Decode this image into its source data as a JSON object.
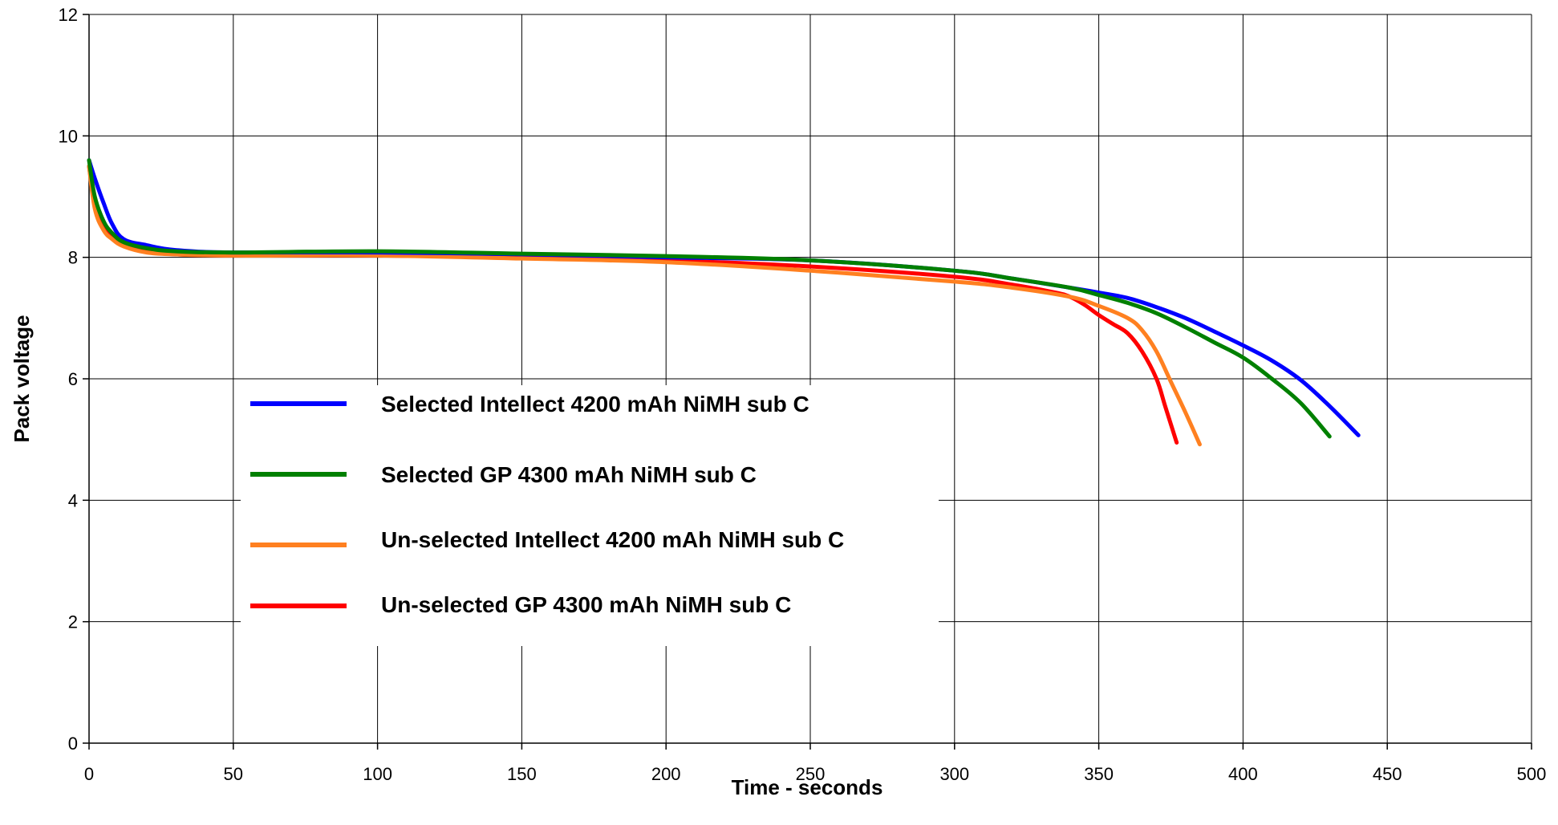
{
  "chart_data": {
    "type": "line",
    "xlabel": "Time - seconds",
    "ylabel": "Pack voltage",
    "xlim": [
      0,
      500
    ],
    "ylim": [
      0,
      12
    ],
    "xticks": [
      0,
      50,
      100,
      150,
      200,
      250,
      300,
      350,
      400,
      450,
      500
    ],
    "yticks": [
      0,
      2,
      4,
      6,
      8,
      10,
      12
    ],
    "grid": true,
    "legend_position": "center-left",
    "series": [
      {
        "name": "Selected Intellect 4200 mAh NiMH sub C",
        "color": "#0000ff",
        "x": [
          0,
          2,
          5,
          8,
          12,
          20,
          30,
          50,
          100,
          150,
          200,
          250,
          300,
          320,
          340,
          350,
          360,
          370,
          380,
          390,
          400,
          410,
          420,
          430,
          440
        ],
        "y": [
          9.6,
          9.3,
          8.9,
          8.55,
          8.3,
          8.2,
          8.12,
          8.08,
          8.08,
          8.05,
          8.0,
          7.95,
          7.78,
          7.65,
          7.5,
          7.42,
          7.33,
          7.18,
          7.0,
          6.78,
          6.55,
          6.3,
          5.98,
          5.55,
          5.07
        ]
      },
      {
        "name": "Selected GP 4300 mAh NiMH sub C",
        "color": "#008000",
        "x": [
          0,
          2,
          5,
          8,
          12,
          20,
          30,
          50,
          100,
          150,
          200,
          250,
          300,
          320,
          340,
          350,
          360,
          370,
          380,
          390,
          400,
          410,
          420,
          430
        ],
        "y": [
          9.6,
          9.0,
          8.6,
          8.4,
          8.25,
          8.15,
          8.1,
          8.08,
          8.1,
          8.06,
          8.02,
          7.95,
          7.78,
          7.65,
          7.5,
          7.38,
          7.25,
          7.08,
          6.85,
          6.6,
          6.35,
          6.0,
          5.6,
          5.05
        ]
      },
      {
        "name": "Un-selected Intellect 4200 mAh NiMH sub C",
        "color": "#ff8020",
        "x": [
          0,
          2,
          5,
          8,
          12,
          20,
          30,
          50,
          100,
          150,
          200,
          250,
          300,
          320,
          340,
          350,
          360,
          365,
          370,
          375,
          380,
          385
        ],
        "y": [
          9.5,
          8.8,
          8.45,
          8.3,
          8.18,
          8.08,
          8.05,
          8.03,
          8.03,
          7.98,
          7.92,
          7.78,
          7.6,
          7.5,
          7.35,
          7.2,
          7.0,
          6.8,
          6.45,
          5.95,
          5.45,
          4.92
        ]
      },
      {
        "name": "Un-selected GP 4300 mAh NiMH sub C",
        "color": "#ff0000",
        "x": [
          0,
          2,
          5,
          8,
          12,
          20,
          30,
          50,
          100,
          150,
          200,
          250,
          300,
          320,
          335,
          340,
          345,
          350,
          355,
          360,
          365,
          370,
          373,
          377
        ],
        "y": [
          9.5,
          8.9,
          8.5,
          8.35,
          8.2,
          8.1,
          8.05,
          8.03,
          8.03,
          8.0,
          7.95,
          7.85,
          7.68,
          7.55,
          7.42,
          7.35,
          7.22,
          7.05,
          6.9,
          6.75,
          6.45,
          6.0,
          5.55,
          4.95
        ]
      }
    ]
  }
}
